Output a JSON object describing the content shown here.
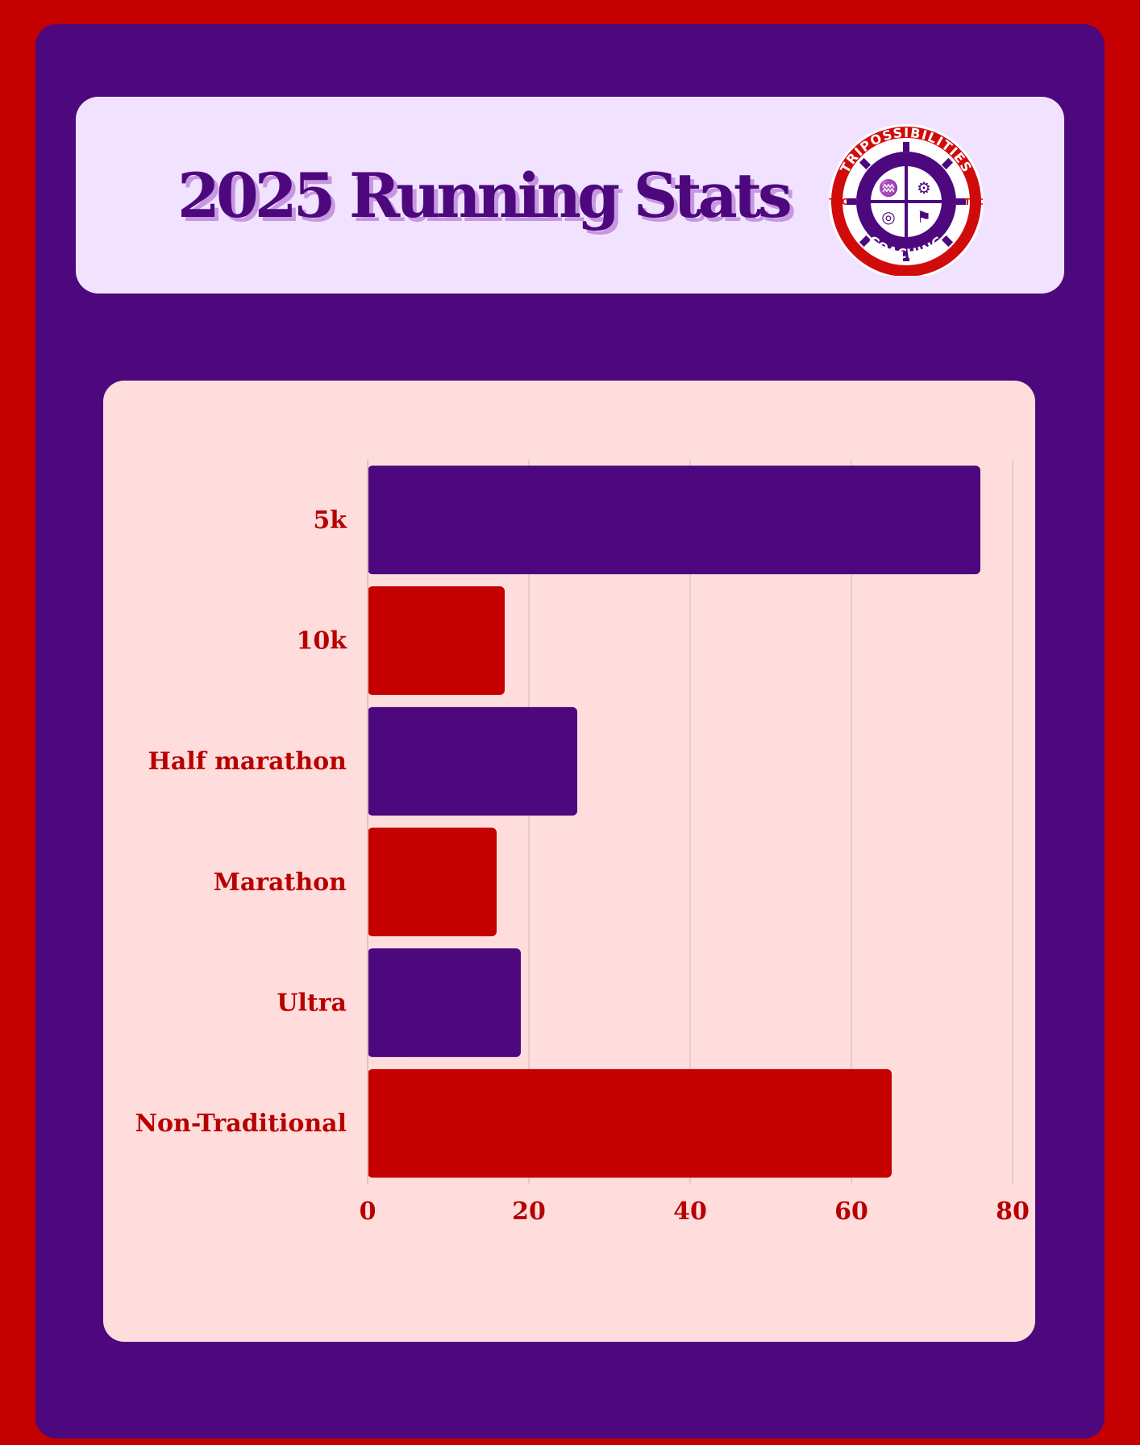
{
  "page": {
    "title": "2025 Running Stats"
  },
  "logo": {
    "top_text": "TRIPOSSIBILITIES",
    "bottom_text": "COACHING",
    "left_text": "TPC",
    "right_text": "TPC",
    "icon_names": [
      "swim-icon",
      "bike-icon",
      "run-icon",
      "strength-icon"
    ],
    "colors": {
      "ring": "#d10b0b",
      "gear": "#4d087e",
      "inner": "#ffffff"
    }
  },
  "chart_data": {
    "type": "bar",
    "orientation": "horizontal",
    "categories": [
      "5k",
      "10k",
      "Half marathon",
      "Marathon",
      "Ultra",
      "Non-Traditional"
    ],
    "values": [
      76,
      17,
      26,
      16,
      19,
      65
    ],
    "title": "",
    "xlabel": "",
    "ylabel": "",
    "xlim": [
      0,
      80
    ],
    "x_ticks": [
      0,
      20,
      40,
      60,
      80
    ],
    "grid": true,
    "legend": "none",
    "colors": [
      "#4d087e",
      "#c40000",
      "#4d087e",
      "#c40000",
      "#4d087e",
      "#c40000"
    ]
  },
  "colors": {
    "background": "#c40000",
    "frame": "#4d087e",
    "header_card": "#f1e3ff",
    "chart_card": "#ffdddd",
    "label_red": "#b80000",
    "grid": "#d8c4c4"
  }
}
